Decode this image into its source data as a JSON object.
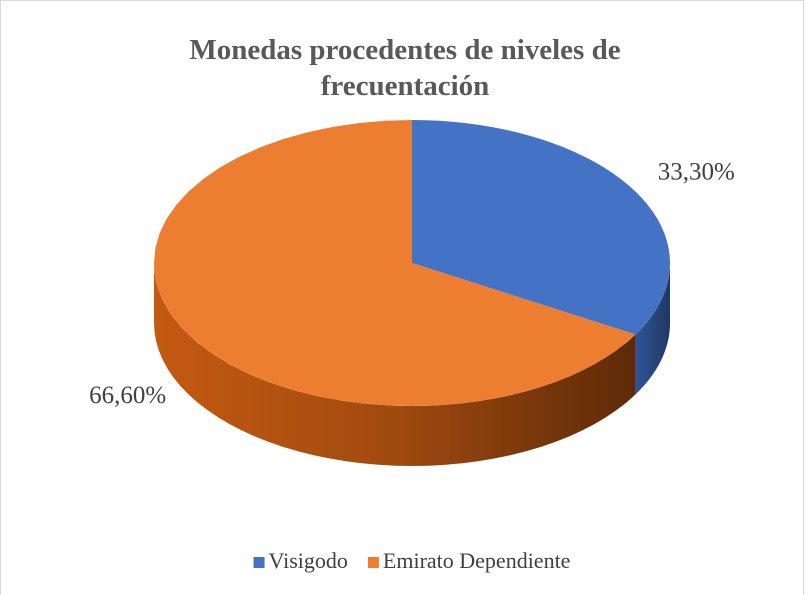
{
  "chart_data": {
    "type": "pie",
    "title": "Monedas procedentes de niveles de frecuentación",
    "categories": [
      "Visigodo",
      "Emirato Dependiente"
    ],
    "values": [
      33.3,
      66.6
    ],
    "value_labels": [
      "33,30%",
      "66,60%"
    ],
    "colors": [
      "#4472c4",
      "#ed7d31"
    ],
    "legend": "bottom"
  }
}
